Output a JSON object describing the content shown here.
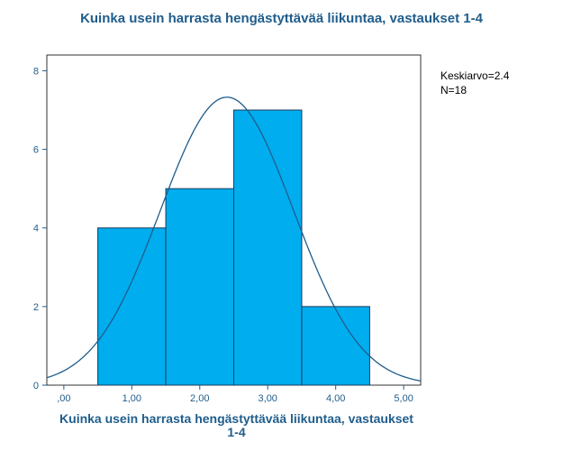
{
  "chart_data": {
    "type": "bar",
    "title": "Kuinka usein harrasta hengästyttävää liikuntaa, vastaukset 1-4",
    "xlabel": "Kuinka usein harrasta hengästyttävää liikuntaa, vastaukset 1-4",
    "ylabel": "",
    "bins": [
      {
        "from": 0.5,
        "to": 1.5,
        "count": 4
      },
      {
        "from": 1.5,
        "to": 2.5,
        "count": 5
      },
      {
        "from": 2.5,
        "to": 3.5,
        "count": 7
      },
      {
        "from": 3.5,
        "to": 4.5,
        "count": 2
      }
    ],
    "xlim": [
      -0.25,
      5.25
    ],
    "ylim": [
      0,
      8.4
    ],
    "x_ticks": [
      0,
      1,
      2,
      3,
      4,
      5
    ],
    "x_tick_labels": [
      ",00",
      "1,00",
      "2,00",
      "3,00",
      "4,00",
      "5,00"
    ],
    "y_ticks": [
      0,
      2,
      4,
      6,
      8
    ],
    "y_tick_labels": [
      "0",
      "2",
      "4",
      "6",
      "8"
    ],
    "normal_curve": {
      "mean": 2.4,
      "sd": 0.98,
      "n": 18,
      "bin_width": 1
    },
    "stats": {
      "mean_text": "Keskiarvo=2.4",
      "n_text": "N=18"
    },
    "colors": {
      "bar_fill": "#00adef",
      "bar_stroke": "#1a3a5a",
      "curve": "#1f5d8c",
      "axis": "#1f5d8c"
    }
  }
}
